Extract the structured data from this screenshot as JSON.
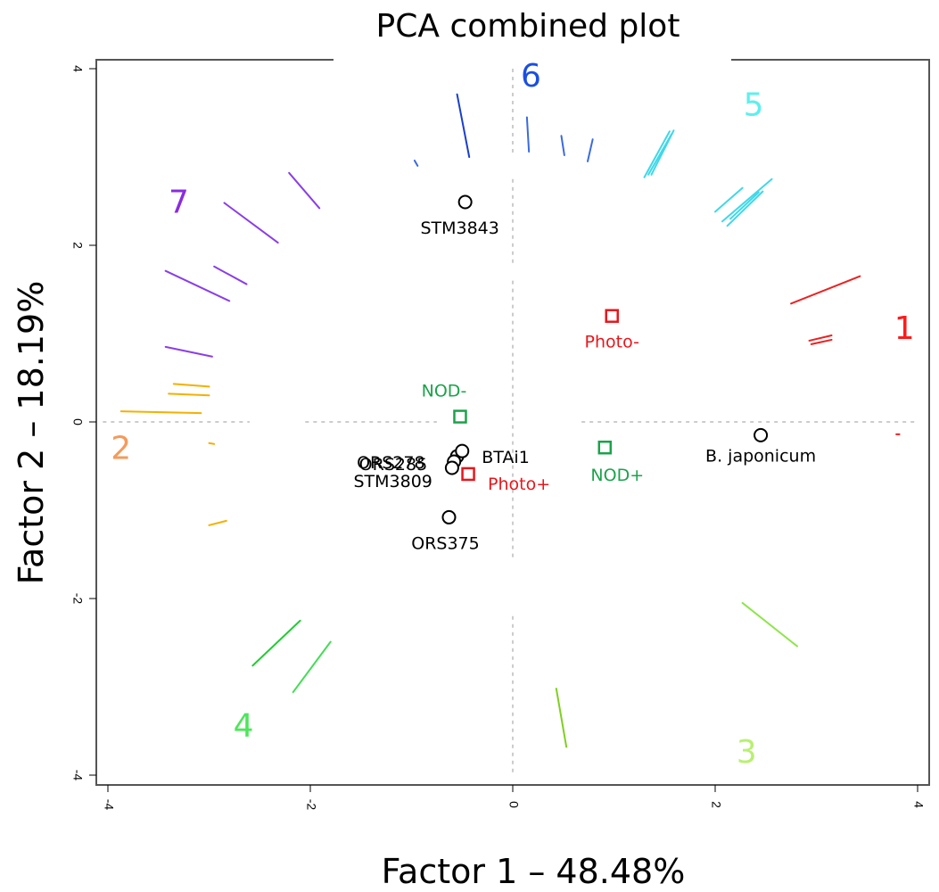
{
  "chart_data": {
    "type": "scatter",
    "title": "PCA combined plot",
    "xlabel": "Factor 1 – 48.48%",
    "ylabel": "Factor 2 – 18.19%",
    "xlim": [
      -4.1,
      4.05
    ],
    "ylim": [
      -4.05,
      4.1
    ],
    "xticks": [
      -4,
      -2,
      0,
      2,
      4
    ],
    "yticks": [
      -4,
      -2,
      0,
      2,
      4
    ],
    "xtick_labels": [
      "-4",
      "-2",
      "0",
      "2",
      "4"
    ],
    "ytick_labels": [
      "-4",
      "-2",
      "0",
      "2",
      "4"
    ],
    "strains": [
      {
        "name": "STM3843",
        "x": -0.47,
        "y": 2.49,
        "color": "#000000",
        "label_pos": "below"
      },
      {
        "name": "ORS278",
        "x": -0.55,
        "y": -0.39,
        "color": "#000000",
        "label_pos": "left"
      },
      {
        "name": "BTAi1",
        "x": -0.5,
        "y": -0.33,
        "color": "#000000",
        "label_pos": "right"
      },
      {
        "name": "ORS285",
        "x": -0.58,
        "y": -0.45,
        "color": "#000000",
        "label_pos": "left"
      },
      {
        "name": "STM3809",
        "x": -0.6,
        "y": -0.52,
        "color": "#000000",
        "label_pos": "left"
      },
      {
        "name": "ORS375",
        "x": -0.63,
        "y": -1.08,
        "color": "#000000",
        "label_pos": "below"
      },
      {
        "name": "B. japonicum",
        "x": 2.45,
        "y": -0.15,
        "color": "#000000",
        "label_pos": "below"
      }
    ],
    "supplementary": [
      {
        "name": "Photo-",
        "x": 0.98,
        "y": 1.2,
        "color": "#e8161b",
        "label_pos": "below"
      },
      {
        "name": "Photo+",
        "x": -0.44,
        "y": -0.59,
        "color": "#e8161b",
        "label_pos": "right"
      },
      {
        "name": "NOD-",
        "x": -0.52,
        "y": 0.06,
        "color": "#1aa34a",
        "label_pos": "above"
      },
      {
        "name": "NOD+",
        "x": 0.91,
        "y": -0.29,
        "color": "#1aa34a",
        "label_pos": "below"
      }
    ],
    "group_labels": [
      {
        "name": "1",
        "x": 3.87,
        "y": 1.04,
        "color": "#ff1a1a"
      },
      {
        "name": "2",
        "x": -3.87,
        "y": -0.32,
        "color": "#f59a5a"
      },
      {
        "name": "3",
        "x": 2.31,
        "y": -3.76,
        "color": "#b8f070"
      },
      {
        "name": "4",
        "x": -2.66,
        "y": -3.46,
        "color": "#4de65a"
      },
      {
        "name": "5",
        "x": 2.38,
        "y": 3.57,
        "color": "#5cf0ee"
      },
      {
        "name": "6",
        "x": 0.18,
        "y": 3.9,
        "color": "#1a4fe0"
      },
      {
        "name": "7",
        "x": -3.3,
        "y": 2.47,
        "color": "#8a2be2"
      }
    ],
    "variable_segments": [
      {
        "group": "1",
        "color": "#ee2020",
        "x1": 2.75,
        "y1": 1.34,
        "x2": 3.43,
        "y2": 1.65
      },
      {
        "group": "1",
        "color": "#ee2020",
        "x1": 2.93,
        "y1": 0.92,
        "x2": 3.15,
        "y2": 0.98
      },
      {
        "group": "1",
        "color": "#ee2020",
        "x1": 2.95,
        "y1": 0.88,
        "x2": 3.15,
        "y2": 0.93
      },
      {
        "group": "1",
        "color": "#ee2020",
        "x1": 3.79,
        "y1": -0.14,
        "x2": 3.82,
        "y2": -0.14
      },
      {
        "group": "2",
        "color": "#f5b000",
        "x1": -3.87,
        "y1": 0.12,
        "x2": -3.08,
        "y2": 0.1
      },
      {
        "group": "2",
        "color": "#f5b000",
        "x1": -3.35,
        "y1": 0.43,
        "x2": -3.0,
        "y2": 0.4
      },
      {
        "group": "2",
        "color": "#f5b000",
        "x1": -3.4,
        "y1": 0.32,
        "x2": -3.0,
        "y2": 0.3
      },
      {
        "group": "2",
        "color": "#f5b000",
        "x1": -3.0,
        "y1": -0.24,
        "x2": -2.95,
        "y2": -0.25
      },
      {
        "group": "2",
        "color": "#f5b000",
        "x1": -3.0,
        "y1": -1.17,
        "x2": -2.83,
        "y2": -1.12
      },
      {
        "group": "3",
        "color": "#8ee64a",
        "x1": 2.27,
        "y1": -2.05,
        "x2": 2.81,
        "y2": -2.54
      },
      {
        "group": "3",
        "color": "#7fd020",
        "x1": 0.43,
        "y1": -3.02,
        "x2": 0.53,
        "y2": -3.68
      },
      {
        "group": "4",
        "color": "#22cc33",
        "x1": -2.57,
        "y1": -2.76,
        "x2": -2.1,
        "y2": -2.25
      },
      {
        "group": "4",
        "color": "#44dd55",
        "x1": -2.17,
        "y1": -3.06,
        "x2": -1.8,
        "y2": -2.49
      },
      {
        "group": "5",
        "color": "#3fd8e8",
        "x1": 1.3,
        "y1": 2.77,
        "x2": 1.55,
        "y2": 3.29
      },
      {
        "group": "5",
        "color": "#3fd8e8",
        "x1": 1.34,
        "y1": 2.8,
        "x2": 1.57,
        "y2": 3.26
      },
      {
        "group": "5",
        "color": "#3fd8e8",
        "x1": 1.37,
        "y1": 2.8,
        "x2": 1.59,
        "y2": 3.3
      },
      {
        "group": "5",
        "color": "#3fd8e8",
        "x1": 2.0,
        "y1": 2.38,
        "x2": 2.27,
        "y2": 2.65
      },
      {
        "group": "5",
        "color": "#3fd8e8",
        "x1": 2.07,
        "y1": 2.27,
        "x2": 2.56,
        "y2": 2.75
      },
      {
        "group": "5",
        "color": "#3fd8e8",
        "x1": 2.12,
        "y1": 2.22,
        "x2": 2.47,
        "y2": 2.61
      },
      {
        "group": "5",
        "color": "#3fd8e8",
        "x1": 2.15,
        "y1": 2.3,
        "x2": 2.43,
        "y2": 2.6
      },
      {
        "group": "6",
        "color": "#1a3fcc",
        "x1": -0.55,
        "y1": 3.71,
        "x2": -0.43,
        "y2": 3.0
      },
      {
        "group": "6",
        "color": "#3a6ae0",
        "x1": 0.14,
        "y1": 3.45,
        "x2": 0.16,
        "y2": 3.06
      },
      {
        "group": "6",
        "color": "#3a6ae0",
        "x1": 0.48,
        "y1": 3.24,
        "x2": 0.51,
        "y2": 3.02
      },
      {
        "group": "6",
        "color": "#3a6ae0",
        "x1": 0.74,
        "y1": 2.95,
        "x2": 0.79,
        "y2": 3.2
      },
      {
        "group": "6",
        "color": "#3a6ae0",
        "x1": -0.97,
        "y1": 2.96,
        "x2": -0.94,
        "y2": 2.9
      },
      {
        "group": "7",
        "color": "#8a3ee8",
        "x1": -2.21,
        "y1": 2.82,
        "x2": -1.91,
        "y2": 2.42
      },
      {
        "group": "7",
        "color": "#8a3ee8",
        "x1": -2.85,
        "y1": 2.48,
        "x2": -2.32,
        "y2": 2.03
      },
      {
        "group": "7",
        "color": "#8a3ee8",
        "x1": -3.43,
        "y1": 1.71,
        "x2": -2.8,
        "y2": 1.37
      },
      {
        "group": "7",
        "color": "#8a3ee8",
        "x1": -2.95,
        "y1": 1.76,
        "x2": -2.63,
        "y2": 1.56
      },
      {
        "group": "7",
        "color": "#8a3ee8",
        "x1": -3.43,
        "y1": 0.85,
        "x2": -2.97,
        "y2": 0.74
      }
    ]
  }
}
